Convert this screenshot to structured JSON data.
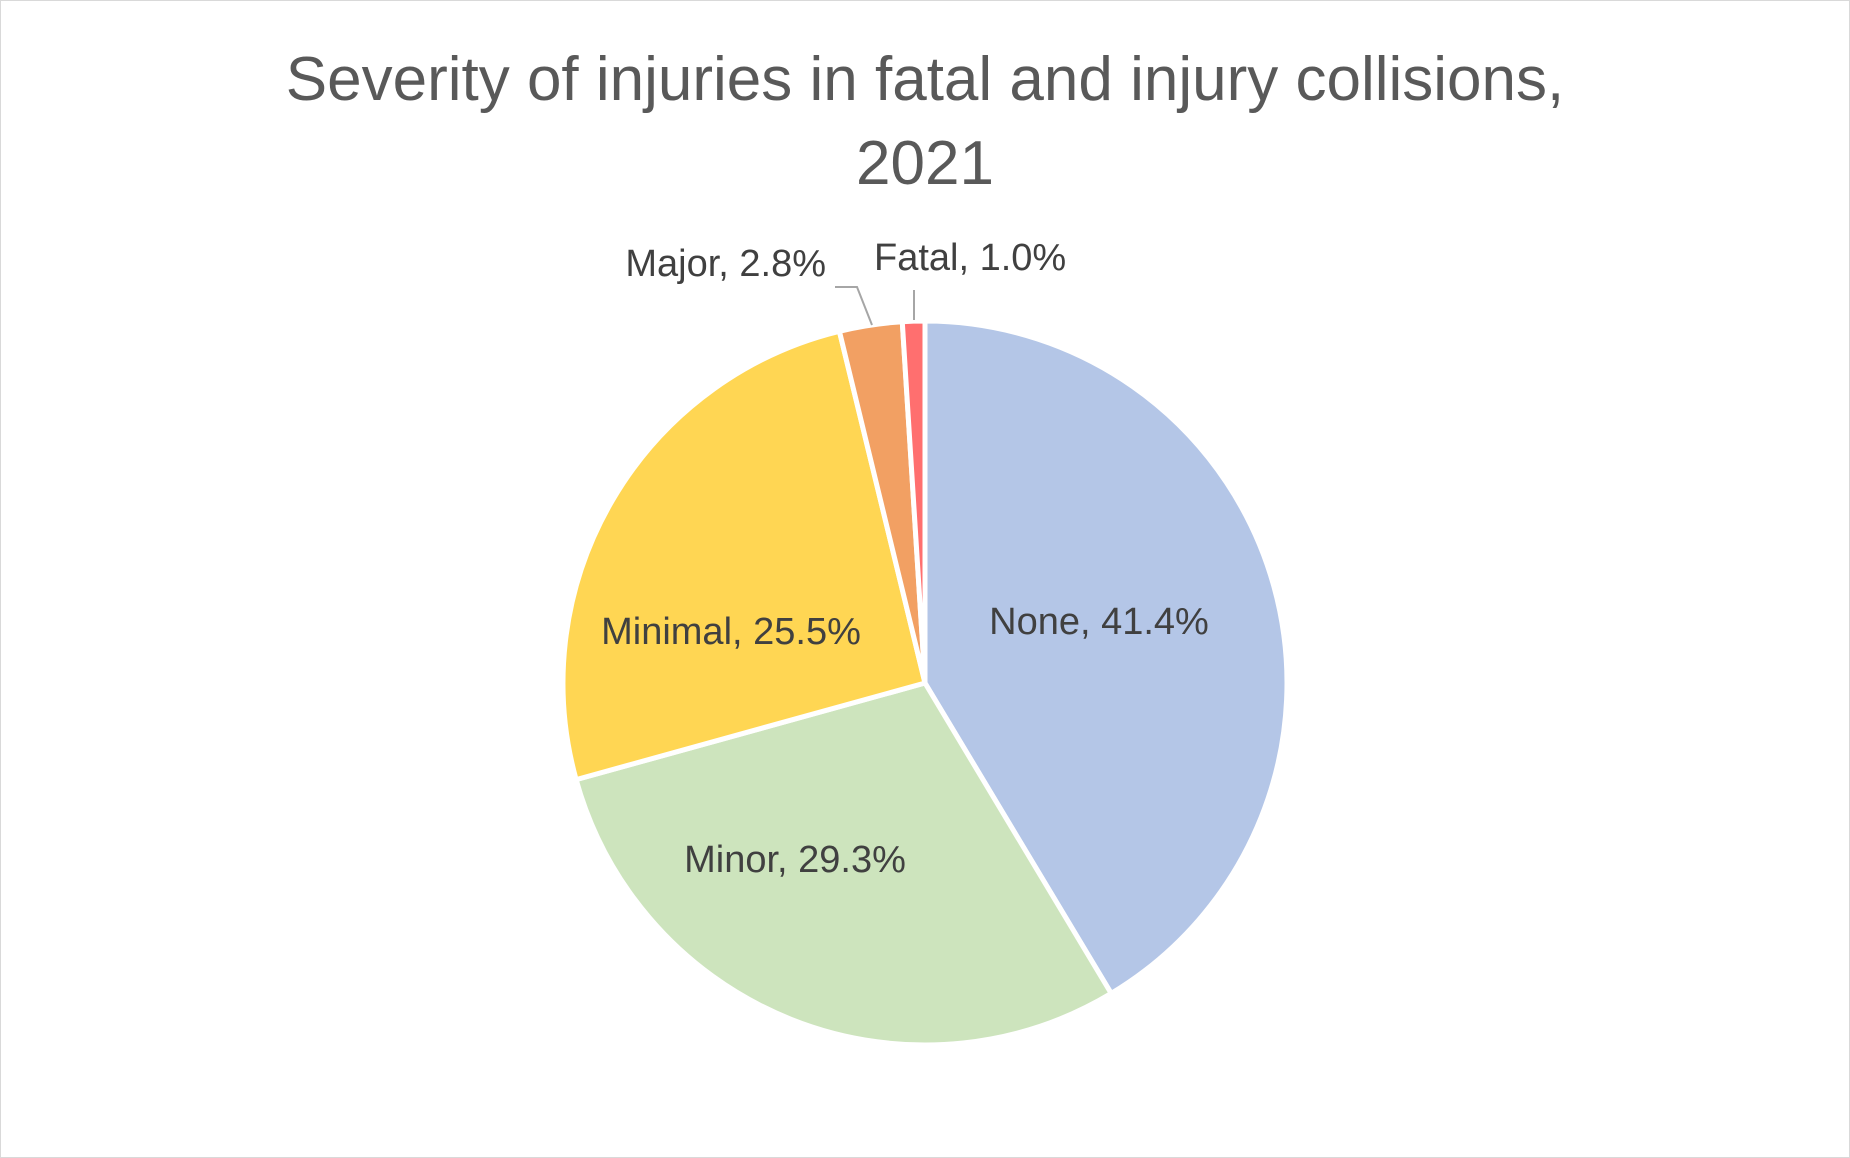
{
  "chart_data": {
    "type": "pie",
    "title_lines": [
      "Severity of injuries in fatal and injury collisions,",
      "2021"
    ],
    "categories": [
      "None",
      "Minor",
      "Minimal",
      "Major",
      "Fatal"
    ],
    "values": [
      41.4,
      29.3,
      25.5,
      2.8,
      1.0
    ],
    "value_unit": "%",
    "labels": [
      "None, 41.4%",
      "Minor, 29.3%",
      "Minimal, 25.5%",
      "Major, 2.8%",
      "Fatal, 1.0%"
    ],
    "colors": [
      "#b4c6e7",
      "#cde4bd",
      "#ffd653",
      "#f2a063",
      "#ff6f6f"
    ],
    "start_angle_deg": 0,
    "direction": "clockwise",
    "legend": "none",
    "leader_lines": [
      "Major",
      "Fatal"
    ]
  }
}
